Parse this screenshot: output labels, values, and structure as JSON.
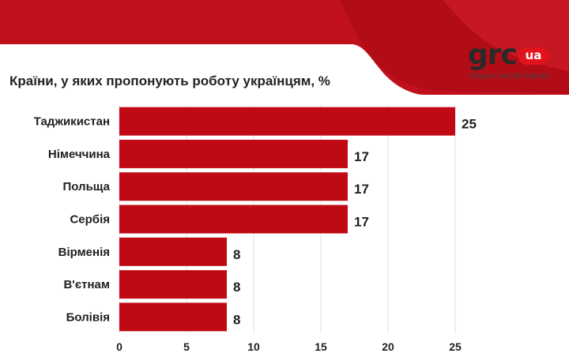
{
  "colors": {
    "bar": "#bf0a15",
    "banner": "#c0101b",
    "banner_dark": "#a50a12",
    "grid": "#e2e2e2",
    "logo_badge": "#e3131e"
  },
  "logo": {
    "word": "grc",
    "badge": "ua",
    "tagline": "більше ніж job портал"
  },
  "chart_data": {
    "type": "bar",
    "orientation": "horizontal",
    "title": "Країни, у яких пропонують роботу українцям, %",
    "categories": [
      "Таджикистан",
      "Німеччина",
      "Польща",
      "Сербія",
      "Вірменія",
      "В'єтнам",
      "Болівія"
    ],
    "values": [
      25,
      17,
      17,
      17,
      8,
      8,
      8
    ],
    "xlim": [
      0,
      25
    ],
    "xticks": [
      0,
      5,
      10,
      15,
      20,
      25
    ],
    "grid": true
  }
}
